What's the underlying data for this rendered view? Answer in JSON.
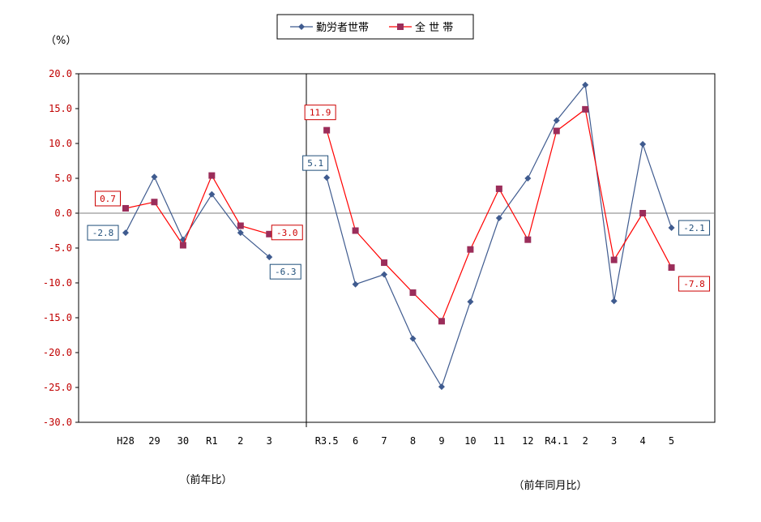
{
  "chart_data": {
    "type": "line",
    "unit_label": "（%）",
    "ylim": [
      -30,
      20
    ],
    "y_ticks": [
      "20.0",
      "15.0",
      "10.0",
      "5.0",
      "0.0",
      "-5.0",
      "-10.0",
      "-15.0",
      "-20.0",
      "-25.0",
      "-30.0"
    ],
    "grid": false,
    "legend_position": "top-center",
    "categories": [
      "H28",
      "29",
      "30",
      "R1",
      "2",
      "3",
      "",
      "R3.5",
      "6",
      "7",
      "8",
      "9",
      "10",
      "11",
      "12",
      "R4.1",
      "2",
      "3",
      "4",
      "5"
    ],
    "section_labels": [
      "（前年比）",
      "（前年同月比）"
    ],
    "series": [
      {
        "name": "勤労者世帯",
        "color": "#3f5b8f",
        "marker": "diamond",
        "values": [
          -2.8,
          5.2,
          -3.8,
          2.7,
          -2.8,
          -6.3,
          null,
          5.1,
          -10.2,
          -8.8,
          -18.0,
          -24.9,
          -12.7,
          -0.7,
          5.0,
          13.3,
          18.4,
          -12.6,
          9.9,
          -2.1
        ]
      },
      {
        "name": "全 世 帯",
        "color": "#ff0000",
        "marker_color": "#9b2d5a",
        "marker": "square",
        "values": [
          0.7,
          1.6,
          -4.6,
          5.4,
          -1.8,
          -3.0,
          null,
          11.9,
          -2.5,
          -7.1,
          -11.4,
          -15.5,
          -5.2,
          3.5,
          -3.8,
          11.8,
          14.9,
          -6.7,
          0.0,
          -7.8
        ]
      }
    ],
    "annotations": [
      {
        "series": "全 世 帯",
        "index": 0,
        "text": "0.7",
        "color": "#cc0000"
      },
      {
        "series": "勤労者世帯",
        "index": 0,
        "text": "-2.8",
        "color": "#1f4e79"
      },
      {
        "series": "全 世 帯",
        "index": 5,
        "text": "-3.0",
        "color": "#cc0000"
      },
      {
        "series": "勤労者世帯",
        "index": 5,
        "text": "-6.3",
        "color": "#1f4e79"
      },
      {
        "series": "全 世 帯",
        "index": 7,
        "text": "11.9",
        "color": "#cc0000"
      },
      {
        "series": "勤労者世帯",
        "index": 7,
        "text": "5.1",
        "color": "#1f4e79"
      },
      {
        "series": "勤労者世帯",
        "index": 19,
        "text": "-2.1",
        "color": "#1f4e79"
      },
      {
        "series": "全 世 帯",
        "index": 19,
        "text": "-7.8",
        "color": "#cc0000"
      }
    ]
  }
}
